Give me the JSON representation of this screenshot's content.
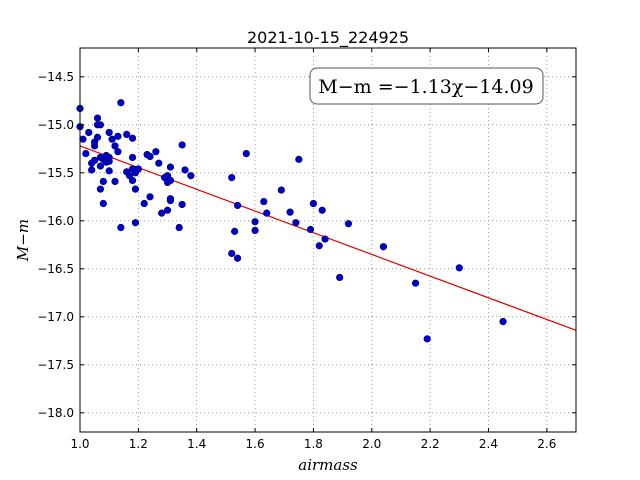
{
  "chart_data": {
    "type": "scatter",
    "title": "2021-10-15_224925",
    "xlabel": "airmass",
    "ylabel": "M−m",
    "xlim": [
      1.0,
      2.7
    ],
    "ylim": [
      -18.2,
      -14.2
    ],
    "y_inverted": false,
    "grid": true,
    "x_ticks": [
      1.0,
      1.2,
      1.4,
      1.6,
      1.8,
      2.0,
      2.2,
      2.4,
      2.6
    ],
    "x_tick_labels": [
      "1.0",
      "1.2",
      "1.4",
      "1.6",
      "1.8",
      "2.0",
      "2.2",
      "2.4",
      "2.6"
    ],
    "y_ticks": [
      -14.5,
      -15.0,
      -15.5,
      -16.0,
      -16.5,
      -17.0,
      -17.5,
      -18.0
    ],
    "y_tick_labels": [
      "−14.5",
      "−15.0",
      "−15.5",
      "−16.0",
      "−16.5",
      "−17.0",
      "−17.5",
      "−18.0"
    ],
    "annotation": "M−m =−1.13χ−14.09",
    "annotation_placement": "top-right",
    "fit": {
      "slope": -1.13,
      "intercept": -14.09,
      "x_range": [
        1.0,
        2.7
      ],
      "color": "#e00000"
    },
    "point_color": "#0000c8",
    "points": [
      {
        "x": 1.0,
        "y": -14.83
      },
      {
        "x": 1.0,
        "y": -15.02
      },
      {
        "x": 1.01,
        "y": -15.15
      },
      {
        "x": 1.02,
        "y": -15.3
      },
      {
        "x": 1.03,
        "y": -15.08
      },
      {
        "x": 1.04,
        "y": -15.4
      },
      {
        "x": 1.04,
        "y": -15.47
      },
      {
        "x": 1.05,
        "y": -15.37
      },
      {
        "x": 1.05,
        "y": -15.22
      },
      {
        "x": 1.05,
        "y": -15.18
      },
      {
        "x": 1.06,
        "y": -15.13
      },
      {
        "x": 1.06,
        "y": -14.93
      },
      {
        "x": 1.06,
        "y": -15.0
      },
      {
        "x": 1.07,
        "y": -15.0
      },
      {
        "x": 1.07,
        "y": -15.34
      },
      {
        "x": 1.07,
        "y": -15.43
      },
      {
        "x": 1.07,
        "y": -15.67
      },
      {
        "x": 1.08,
        "y": -15.59
      },
      {
        "x": 1.08,
        "y": -15.36
      },
      {
        "x": 1.08,
        "y": -15.82
      },
      {
        "x": 1.09,
        "y": -15.32
      },
      {
        "x": 1.09,
        "y": -15.39
      },
      {
        "x": 1.1,
        "y": -15.48
      },
      {
        "x": 1.1,
        "y": -15.38
      },
      {
        "x": 1.1,
        "y": -15.34
      },
      {
        "x": 1.1,
        "y": -15.08
      },
      {
        "x": 1.11,
        "y": -15.15
      },
      {
        "x": 1.12,
        "y": -15.22
      },
      {
        "x": 1.12,
        "y": -15.59
      },
      {
        "x": 1.13,
        "y": -15.28
      },
      {
        "x": 1.13,
        "y": -15.12
      },
      {
        "x": 1.14,
        "y": -14.77
      },
      {
        "x": 1.14,
        "y": -16.07
      },
      {
        "x": 1.16,
        "y": -15.49
      },
      {
        "x": 1.16,
        "y": -15.1
      },
      {
        "x": 1.17,
        "y": -15.53
      },
      {
        "x": 1.18,
        "y": -15.14
      },
      {
        "x": 1.18,
        "y": -15.34
      },
      {
        "x": 1.18,
        "y": -15.46
      },
      {
        "x": 1.18,
        "y": -15.58
      },
      {
        "x": 1.19,
        "y": -15.5
      },
      {
        "x": 1.19,
        "y": -15.67
      },
      {
        "x": 1.19,
        "y": -16.02
      },
      {
        "x": 1.2,
        "y": -15.46
      },
      {
        "x": 1.22,
        "y": -15.82
      },
      {
        "x": 1.23,
        "y": -15.31
      },
      {
        "x": 1.24,
        "y": -15.33
      },
      {
        "x": 1.24,
        "y": -15.75
      },
      {
        "x": 1.26,
        "y": -15.28
      },
      {
        "x": 1.27,
        "y": -15.4
      },
      {
        "x": 1.28,
        "y": -15.92
      },
      {
        "x": 1.29,
        "y": -15.55
      },
      {
        "x": 1.3,
        "y": -15.53
      },
      {
        "x": 1.3,
        "y": -15.6
      },
      {
        "x": 1.3,
        "y": -15.89
      },
      {
        "x": 1.31,
        "y": -15.44
      },
      {
        "x": 1.31,
        "y": -15.58
      },
      {
        "x": 1.31,
        "y": -15.79
      },
      {
        "x": 1.31,
        "y": -15.77
      },
      {
        "x": 1.34,
        "y": -16.07
      },
      {
        "x": 1.35,
        "y": -15.21
      },
      {
        "x": 1.35,
        "y": -15.83
      },
      {
        "x": 1.36,
        "y": -15.47
      },
      {
        "x": 1.38,
        "y": -15.53
      },
      {
        "x": 1.52,
        "y": -15.55
      },
      {
        "x": 1.52,
        "y": -16.34
      },
      {
        "x": 1.53,
        "y": -16.11
      },
      {
        "x": 1.54,
        "y": -15.84
      },
      {
        "x": 1.54,
        "y": -16.39
      },
      {
        "x": 1.57,
        "y": -15.3
      },
      {
        "x": 1.6,
        "y": -16.01
      },
      {
        "x": 1.6,
        "y": -16.1
      },
      {
        "x": 1.63,
        "y": -15.8
      },
      {
        "x": 1.64,
        "y": -15.92
      },
      {
        "x": 1.69,
        "y": -15.68
      },
      {
        "x": 1.72,
        "y": -15.91
      },
      {
        "x": 1.74,
        "y": -16.02
      },
      {
        "x": 1.75,
        "y": -15.36
      },
      {
        "x": 1.79,
        "y": -16.09
      },
      {
        "x": 1.8,
        "y": -15.82
      },
      {
        "x": 1.82,
        "y": -16.26
      },
      {
        "x": 1.83,
        "y": -15.89
      },
      {
        "x": 1.84,
        "y": -16.19
      },
      {
        "x": 1.89,
        "y": -16.59
      },
      {
        "x": 1.92,
        "y": -16.03
      },
      {
        "x": 2.04,
        "y": -16.27
      },
      {
        "x": 2.15,
        "y": -16.65
      },
      {
        "x": 2.19,
        "y": -17.23
      },
      {
        "x": 2.3,
        "y": -16.49
      },
      {
        "x": 2.45,
        "y": -17.05
      }
    ]
  }
}
